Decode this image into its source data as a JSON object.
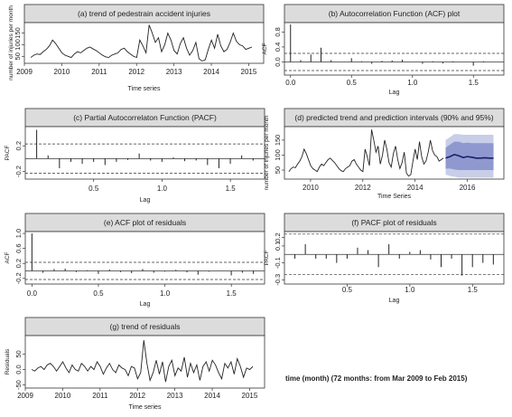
{
  "caption": "time (month) (72 months: from Mar 2009 to Feb 2015)",
  "colors": {
    "band95": "#c9cee8",
    "band90": "#8f99cf",
    "forecast": "#1a1f6b",
    "header_bg": "#dcdcdc",
    "line": "#222222"
  },
  "chart_data": [
    {
      "id": "a",
      "type": "line",
      "title": "(a) trend of pedestrain accident injuries",
      "xlabel": "Time series",
      "ylabel": "number of injuries per month",
      "xlim": [
        2009,
        2015.4
      ],
      "ylim": [
        20,
        195
      ],
      "xticks": [
        2009,
        2010,
        2011,
        2012,
        2013,
        2014,
        2015
      ],
      "yticks": [
        50,
        100,
        150
      ],
      "series": [
        {
          "x_start": 2009.17,
          "x_step": 0.08333,
          "values": [
            45,
            55,
            60,
            58,
            70,
            80,
            95,
            120,
            105,
            85,
            65,
            55,
            50,
            45,
            60,
            70,
            65,
            75,
            85,
            90,
            82,
            75,
            65,
            55,
            48,
            45,
            55,
            60,
            65,
            80,
            85,
            70,
            60,
            50,
            45,
            120,
            95,
            65,
            185,
            150,
            110,
            130,
            70,
            100,
            150,
            120,
            75,
            60,
            105,
            130,
            85,
            55,
            75,
            110,
            40,
            30,
            35,
            80,
            120,
            85,
            145,
            95,
            70,
            80,
            110,
            150,
            115,
            100,
            95,
            80,
            85,
            90
          ]
        }
      ]
    },
    {
      "id": "b",
      "type": "bar",
      "title": "(b) Autocorrelation Function (ACF) plot",
      "xlabel": "Lag",
      "ylabel": "ACF",
      "xlim": [
        -0.05,
        1.75
      ],
      "ylim": [
        -0.35,
        1.05
      ],
      "xticks": [
        0.0,
        0.5,
        1.0,
        1.5
      ],
      "yticks": [
        0.0,
        0.4,
        0.8
      ],
      "conf": 0.23,
      "lags_x_start": 0,
      "lags_x_step": 0.0833,
      "values": [
        1.0,
        0.05,
        0.2,
        0.38,
        0.05,
        0.0,
        0.1,
        0.02,
        -0.05,
        0.03,
        0.04,
        0.06,
        0.0,
        -0.05,
        0.02,
        -0.04,
        0.02,
        0.0,
        -0.1,
        0.02,
        0.0
      ]
    },
    {
      "id": "c",
      "type": "bar",
      "title": "(c) Partial Autocorrelaton Function (PACF)",
      "xlabel": "Lag",
      "ylabel": "PACF",
      "xlim": [
        0.0,
        1.75
      ],
      "ylim": [
        -0.32,
        0.5
      ],
      "xticks": [
        0.5,
        1.0,
        1.5
      ],
      "yticks": [
        -0.2,
        0.2
      ],
      "conf": 0.23,
      "lags_x_start": 0.0833,
      "lags_x_step": 0.0833,
      "values": [
        0.45,
        0.05,
        -0.15,
        -0.05,
        -0.08,
        -0.05,
        -0.1,
        -0.05,
        -0.02,
        0.08,
        -0.03,
        -0.05,
        0.02,
        -0.04,
        -0.03,
        -0.1,
        -0.15,
        -0.08,
        0.05,
        -0.03
      ]
    },
    {
      "id": "d",
      "type": "line",
      "title": "(d) predicted trend and prediction intervals (90% and 95%)",
      "xlabel": "Time Series",
      "ylabel": "number of injuries per month",
      "xlim": [
        2009,
        2017.4
      ],
      "ylim": [
        20,
        195
      ],
      "xticks": [
        2010,
        2012,
        2014,
        2016
      ],
      "yticks": [
        50,
        100,
        150
      ],
      "series": [
        {
          "x_start": 2009.17,
          "x_step": 0.08333,
          "values": [
            45,
            55,
            60,
            58,
            70,
            80,
            95,
            120,
            105,
            85,
            65,
            55,
            50,
            45,
            60,
            70,
            65,
            75,
            85,
            90,
            82,
            75,
            65,
            55,
            48,
            45,
            55,
            60,
            65,
            80,
            85,
            70,
            60,
            50,
            45,
            120,
            95,
            65,
            185,
            150,
            110,
            130,
            70,
            100,
            150,
            120,
            75,
            60,
            105,
            130,
            85,
            55,
            75,
            110,
            40,
            30,
            35,
            80,
            120,
            85,
            145,
            95,
            70,
            80,
            110,
            150,
            115,
            100,
            95,
            80,
            85,
            90
          ]
        }
      ],
      "forecast": {
        "x_start": 2015.17,
        "x_step": 0.1667,
        "mean": [
          90,
          95,
          102,
          98,
          92,
          95,
          93,
          90,
          90,
          91,
          90,
          90
        ],
        "lo90": [
          55,
          55,
          52,
          50,
          50,
          50,
          50,
          50,
          50,
          50,
          50,
          50
        ],
        "hi90": [
          125,
          135,
          145,
          145,
          140,
          142,
          140,
          140,
          140,
          140,
          140,
          140
        ],
        "lo95": [
          35,
          30,
          28,
          25,
          25,
          25,
          25,
          25,
          25,
          25,
          25,
          25
        ],
        "hi95": [
          150,
          160,
          170,
          170,
          168,
          168,
          168,
          168,
          168,
          168,
          168,
          168
        ]
      }
    },
    {
      "id": "e",
      "type": "bar",
      "title": "(e) ACF plot of residuals",
      "xlabel": "Lag",
      "ylabel": "ACF",
      "xlim": [
        -0.05,
        1.75
      ],
      "ylim": [
        -0.35,
        1.05
      ],
      "xticks": [
        0.0,
        0.5,
        1.0,
        1.5
      ],
      "yticks": [
        -0.2,
        0.2,
        0.6,
        1.0
      ],
      "conf": 0.23,
      "lags_x_start": 0,
      "lags_x_step": 0.0833,
      "values": [
        1.0,
        -0.05,
        0.05,
        0.06,
        -0.03,
        0.02,
        -0.08,
        0.04,
        -0.03,
        -0.06,
        0.05,
        -0.05,
        -0.02,
        0.03,
        -0.04,
        -0.1,
        -0.02,
        0.0,
        -0.12,
        -0.05,
        -0.08
      ]
    },
    {
      "id": "f",
      "type": "bar",
      "title": "(f) PACF plot of residuals",
      "xlabel": "Lag",
      "ylabel": "PACF",
      "xlim": [
        0.0,
        1.75
      ],
      "ylim": [
        -0.35,
        0.27
      ],
      "xticks": [
        0.5,
        1.0,
        1.5
      ],
      "yticks": [
        -0.3,
        -0.1,
        0.1,
        0.2
      ],
      "conf": 0.24,
      "lags_x_start": 0.0833,
      "lags_x_step": 0.0833,
      "values": [
        -0.05,
        0.12,
        -0.05,
        -0.05,
        -0.1,
        -0.05,
        0.08,
        0.05,
        -0.15,
        0.12,
        -0.05,
        0.03,
        0.05,
        -0.06,
        -0.15,
        -0.05,
        -0.25,
        -0.15,
        -0.1,
        -0.12
      ]
    },
    {
      "id": "g",
      "type": "line",
      "title": "(g) trend of residuals",
      "xlabel": "Time series",
      "ylabel": "Residuals",
      "xlim": [
        2009,
        2015.4
      ],
      "ylim": [
        -60,
        110
      ],
      "xticks": [
        2009,
        2010,
        2011,
        2012,
        2013,
        2014,
        2015
      ],
      "yticks": [
        -50,
        0,
        50
      ],
      "series": [
        {
          "x_start": 2009.17,
          "x_step": 0.08333,
          "values": [
            0,
            -5,
            5,
            10,
            0,
            15,
            20,
            10,
            -5,
            10,
            25,
            5,
            -10,
            15,
            0,
            -5,
            20,
            10,
            -5,
            10,
            0,
            25,
            10,
            -15,
            5,
            20,
            0,
            -10,
            15,
            5,
            0,
            -20,
            10,
            5,
            -30,
            -10,
            95,
            20,
            -35,
            -10,
            30,
            -15,
            25,
            -40,
            10,
            30,
            -20,
            5,
            -5,
            40,
            -25,
            20,
            -10,
            15,
            -35,
            10,
            25,
            -5,
            30,
            15,
            -10,
            -30,
            20,
            5,
            25,
            -15,
            35,
            10,
            -25,
            5,
            0,
            10
          ]
        }
      ]
    }
  ]
}
